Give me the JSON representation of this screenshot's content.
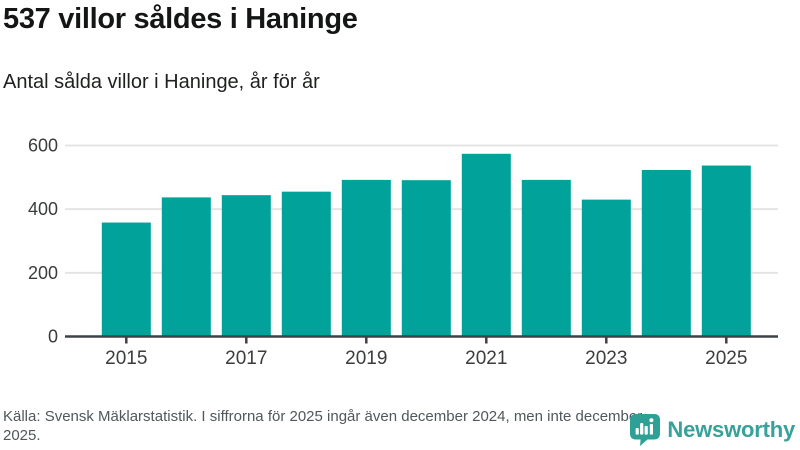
{
  "header": {
    "title": "537 villor såldes i Haninge",
    "subtitle": "Antal sålda villor i Haninge, år för år"
  },
  "chart_data": {
    "type": "bar",
    "categories": [
      "2015",
      "2016",
      "2017",
      "2018",
      "2019",
      "2020",
      "2021",
      "2022",
      "2023",
      "2024",
      "2025"
    ],
    "values": [
      358,
      437,
      444,
      455,
      492,
      491,
      574,
      492,
      430,
      523,
      537
    ],
    "title": "537 villor såldes i Haninge",
    "subtitle": "Antal sålda villor i Haninge, år för år",
    "xlabel": "",
    "ylabel": "",
    "ylim": [
      0,
      600
    ],
    "yticks": [
      0,
      200,
      400,
      600
    ],
    "xtick_labels": [
      "2015",
      "2017",
      "2019",
      "2021",
      "2023",
      "2025"
    ],
    "grid": true,
    "legend": "none",
    "bar_color": "#00a29a",
    "grid_color": "#e4e4e4",
    "axis_color": "#3c4245",
    "tick_label_color": "#3a3d3c"
  },
  "footer": {
    "source_text": "Källa: Svensk Mäklarstatistik. I siffrorna för 2025 ingår även december 2024, men inte december 2025.",
    "logo_text": "Newsworthy"
  },
  "colors": {
    "bar": "#00a29a",
    "logo_bubble": "#2fa096",
    "logo_text": "#37a19a"
  }
}
